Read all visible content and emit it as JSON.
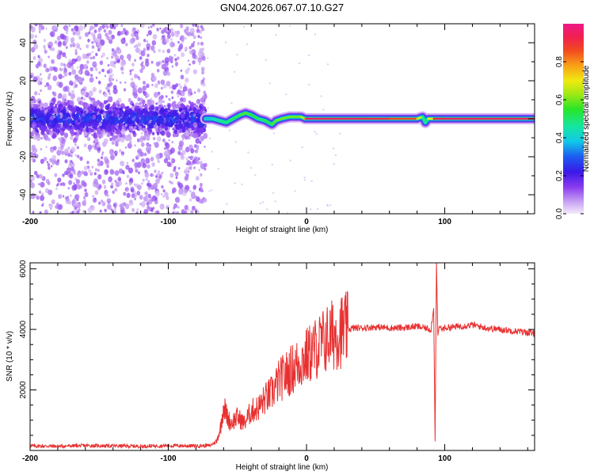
{
  "title": "GN04.2026.067.07.10.G27",
  "colors": {
    "snr_line": "#e83030",
    "axis": "#000000",
    "background": "#ffffff"
  },
  "chart_data": [
    {
      "type": "heatmap",
      "name": "spectrogram",
      "xlabel": "Height of straight line (km)",
      "ylabel": "Frequency (Hz)",
      "xlim": [
        -200,
        165
      ],
      "ylim": [
        -50,
        50
      ],
      "x_ticks": [
        -200,
        -100,
        0,
        100
      ],
      "x_tick_labels": [
        "-200",
        "-100",
        "0",
        "100"
      ],
      "y_ticks": [
        -40,
        -20,
        0,
        20,
        40
      ],
      "y_tick_labels": [
        "-40",
        "-20",
        "0",
        "20",
        "40"
      ],
      "colorbar": {
        "label": "Normalized spectral amplitude",
        "range": [
          0,
          1
        ],
        "ticks": [
          0,
          0.2,
          0.4,
          0.6,
          0.8
        ],
        "tick_labels": [
          "0.0",
          "0.2",
          "0.4",
          "0.6",
          "0.8"
        ]
      },
      "noise_region_km": [
        -200,
        -73
      ],
      "signal_track": {
        "x": [
          -73,
          -68,
          -63,
          -58,
          -53,
          -48,
          -44,
          -40,
          -35,
          -30,
          -25,
          -22,
          -18,
          -12,
          -8,
          -4,
          -1,
          0,
          20,
          40,
          60,
          80,
          84,
          86,
          88,
          92,
          100,
          120,
          140,
          165
        ],
        "y": [
          0,
          0,
          -1,
          -2,
          0,
          2,
          3,
          2,
          0,
          -1,
          -3,
          -1,
          0,
          1,
          1,
          1,
          0,
          0,
          0,
          0,
          0,
          0,
          1,
          -2,
          0,
          0,
          0,
          0,
          0,
          0
        ],
        "amplitude": [
          0.35,
          0.4,
          0.45,
          0.5,
          0.5,
          0.55,
          0.6,
          0.55,
          0.5,
          0.5,
          0.55,
          0.6,
          0.6,
          0.6,
          0.6,
          0.6,
          0.7,
          0.95,
          0.95,
          0.95,
          0.9,
          0.85,
          0.5,
          0.45,
          0.5,
          0.9,
          0.95,
          0.95,
          0.95,
          0.95
        ]
      }
    },
    {
      "type": "line",
      "name": "snr",
      "xlabel": "Height of straight line (km)",
      "ylabel": "SNR (10 * v/v)",
      "xlim": [
        -200,
        165
      ],
      "ylim": [
        0,
        6200
      ],
      "x_ticks": [
        -200,
        -100,
        0,
        100
      ],
      "x_tick_labels": [
        "-200",
        "-100",
        "0",
        "100"
      ],
      "y_ticks": [
        2000,
        4000,
        6000
      ],
      "y_tick_labels": [
        "2000",
        "4000",
        "6000"
      ],
      "series": [
        {
          "name": "SNR",
          "x": [
            -200,
            -180,
            -160,
            -140,
            -120,
            -100,
            -80,
            -70,
            -65,
            -62,
            -60,
            -58,
            -55,
            -50,
            -45,
            -40,
            -35,
            -30,
            -25,
            -20,
            -15,
            -10,
            -5,
            0,
            5,
            10,
            15,
            20,
            25,
            30,
            35,
            40,
            50,
            60,
            70,
            80,
            85,
            90,
            92,
            93,
            94,
            95,
            96,
            98,
            100,
            110,
            120,
            130,
            140,
            150,
            160,
            165
          ],
          "y": [
            150,
            140,
            160,
            150,
            140,
            160,
            150,
            160,
            300,
            800,
            1500,
            1200,
            900,
            1100,
            900,
            1300,
            1400,
            1700,
            1900,
            2300,
            2500,
            2700,
            2900,
            3100,
            3300,
            3500,
            3700,
            3850,
            3950,
            4000,
            4050,
            4050,
            4080,
            4050,
            4050,
            4100,
            4050,
            4000,
            4700,
            300,
            6200,
            3800,
            4100,
            4000,
            4050,
            4100,
            4150,
            4050,
            4000,
            3950,
            3900,
            3850
          ]
        }
      ]
    }
  ]
}
